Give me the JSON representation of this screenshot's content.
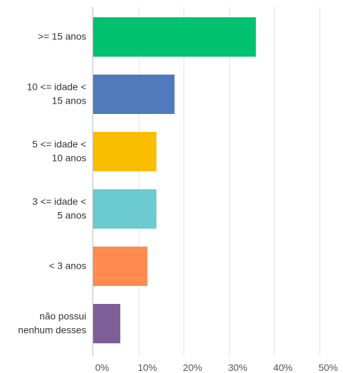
{
  "chart_data": {
    "type": "bar",
    "orientation": "horizontal",
    "categories": [
      [
        ">= 15 anos"
      ],
      [
        "10 <= idade <",
        "15 anos"
      ],
      [
        "5 <= idade <",
        "10 anos"
      ],
      [
        "3 <= idade <",
        "5 anos"
      ],
      [
        "< 3 anos"
      ],
      [
        "não possui",
        "nenhum desses"
      ]
    ],
    "values": [
      36,
      18,
      14,
      14,
      12,
      6
    ],
    "colors": [
      "#00c26e",
      "#4f7bbc",
      "#f9be00",
      "#6bcbd0",
      "#ff8b4f",
      "#7d5e98"
    ],
    "xlim": [
      0,
      55
    ],
    "ticks": [
      0,
      10,
      20,
      30,
      40,
      50
    ],
    "tick_labels": [
      "0%",
      "10%",
      "20%",
      "30%",
      "40%",
      "50%"
    ],
    "grid": true,
    "title": "",
    "xlabel": "",
    "ylabel": ""
  }
}
